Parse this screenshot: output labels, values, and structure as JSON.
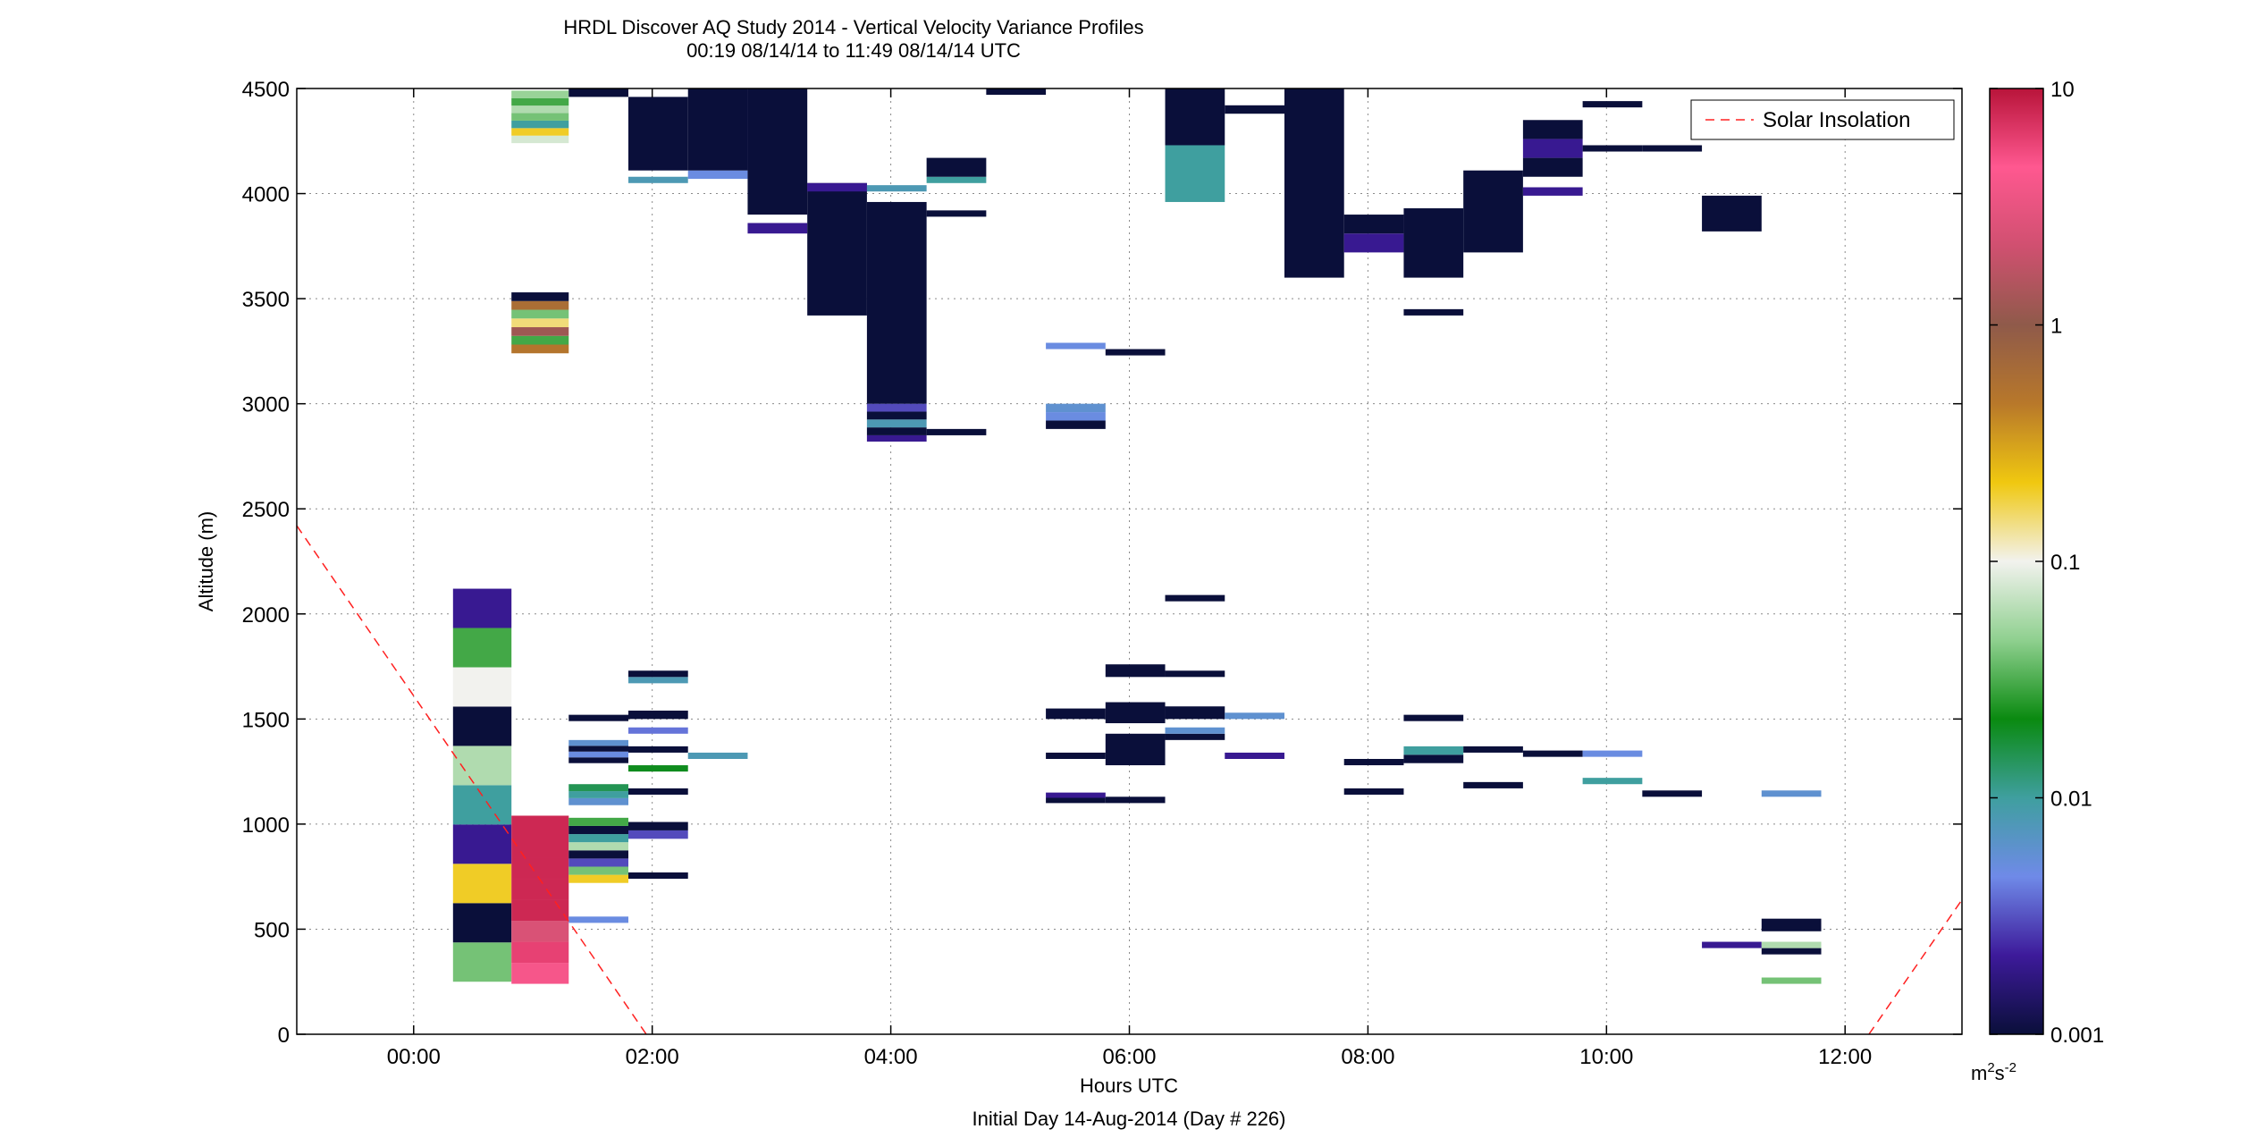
{
  "chart_data": {
    "type": "heatmap",
    "title": "HRDL Discover AQ Study 2014 - Vertical Velocity Variance Profiles",
    "subtitle": "00:19 08/14/14 to 11:49 08/14/14  UTC",
    "xlabel": "Hours UTC",
    "xlabel2": "Initial Day 14-Aug-2014 (Day # 226)",
    "ylabel": "Altitude (m)",
    "xlim": [
      -0.98,
      12.98
    ],
    "ylim": [
      0,
      4500
    ],
    "x_ticks": [
      0,
      2,
      4,
      6,
      8,
      10,
      12
    ],
    "x_tick_labels": [
      "00:00",
      "02:00",
      "04:00",
      "06:00",
      "08:00",
      "10:00",
      "12:00"
    ],
    "y_ticks": [
      0,
      500,
      1000,
      1500,
      2000,
      2500,
      3000,
      3500,
      4000,
      4500
    ],
    "y_tick_labels": [
      "0",
      "500",
      "1000",
      "1500",
      "2000",
      "2500",
      "3000",
      "3500",
      "4000",
      "4500"
    ],
    "grid": true,
    "legend": {
      "position": "top-right",
      "entries": [
        "Solar Insolation"
      ]
    },
    "colorbar": {
      "scale": "log",
      "range": [
        0.001,
        10
      ],
      "ticks": [
        0.001,
        0.01,
        0.1,
        1,
        10
      ],
      "tick_labels": [
        "0.001",
        "0.01",
        "0.1",
        "1",
        "10"
      ],
      "unit_base": "m",
      "unit_sup1": "2",
      "unit_mid": "s",
      "unit_sup2": "-2",
      "stops": [
        "#0a0f3a",
        "#3d1a9a",
        "#6f8ae8",
        "#3f9f9f",
        "#0a8a10",
        "#8fd08f",
        "#f2f2ee",
        "#f0c810",
        "#b8782a",
        "#8f5a4a",
        "#d05070",
        "#ff5890",
        "#b8143a"
      ]
    },
    "solar_insolation": [
      {
        "x": -0.98,
        "y": 2420
      },
      {
        "x": 1.95,
        "y": 0
      },
      {
        "x": 12.2,
        "y": 0
      },
      {
        "x": 12.98,
        "y": 640
      }
    ],
    "cells": [
      {
        "x0": 0.33,
        "x1": 0.82,
        "y0": 250,
        "y1": 2120,
        "v": [
          0.04,
          0.001,
          0.2,
          0.002,
          0.01,
          0.06,
          0.001,
          0.1,
          0.03,
          0.002
        ]
      },
      {
        "x0": 0.82,
        "x1": 1.3,
        "y0": 240,
        "y1": 1040,
        "v": [
          4,
          6,
          2.5,
          8,
          8,
          8,
          8,
          8
        ]
      },
      {
        "x0": 0.82,
        "x1": 1.3,
        "y0": 3240,
        "y1": 3530,
        "v": [
          0.5,
          0.03,
          1.2,
          0.15,
          0.04,
          0.6,
          0.001
        ]
      },
      {
        "x0": 0.82,
        "x1": 1.3,
        "y0": 4240,
        "y1": 4490,
        "v": [
          0.08,
          0.2,
          0.01,
          0.04,
          0.06,
          0.03,
          0.05
        ]
      },
      {
        "x0": 1.3,
        "x1": 1.8,
        "y0": 530,
        "y1": 560,
        "v": [
          0.005
        ]
      },
      {
        "x0": 1.3,
        "x1": 1.8,
        "y0": 720,
        "y1": 1030,
        "v": [
          0.2,
          0.04,
          0.003,
          0.001,
          0.06,
          0.01,
          0.001,
          0.03
        ]
      },
      {
        "x0": 1.3,
        "x1": 1.8,
        "y0": 1090,
        "y1": 1190,
        "v": [
          0.006,
          0.01,
          0.015
        ]
      },
      {
        "x0": 1.3,
        "x1": 1.8,
        "y0": 1290,
        "y1": 1400,
        "v": [
          0.001,
          0.005,
          0.001,
          0.006
        ]
      },
      {
        "x0": 1.3,
        "x1": 1.8,
        "y0": 1490,
        "y1": 1520,
        "v": [
          0.001
        ]
      },
      {
        "x0": 1.3,
        "x1": 1.8,
        "y0": 4460,
        "y1": 4500,
        "v": [
          0.001
        ]
      },
      {
        "x0": 1.8,
        "x1": 2.3,
        "y0": 740,
        "y1": 770,
        "v": [
          0.001
        ]
      },
      {
        "x0": 1.8,
        "x1": 2.3,
        "y0": 930,
        "y1": 1010,
        "v": [
          0.003,
          0.001
        ]
      },
      {
        "x0": 1.8,
        "x1": 2.3,
        "y0": 1140,
        "y1": 1170,
        "v": [
          0.001
        ]
      },
      {
        "x0": 1.8,
        "x1": 2.3,
        "y0": 1250,
        "y1": 1280,
        "v": [
          0.02
        ]
      },
      {
        "x0": 1.8,
        "x1": 2.3,
        "y0": 1340,
        "y1": 1370,
        "v": [
          0.001
        ]
      },
      {
        "x0": 1.8,
        "x1": 2.3,
        "y0": 1430,
        "y1": 1460,
        "v": [
          0.004
        ]
      },
      {
        "x0": 1.8,
        "x1": 2.3,
        "y0": 1500,
        "y1": 1540,
        "v": [
          0.001
        ]
      },
      {
        "x0": 1.8,
        "x1": 2.3,
        "y0": 1670,
        "y1": 1730,
        "v": [
          0.008,
          0.001
        ]
      },
      {
        "x0": 1.8,
        "x1": 2.3,
        "y0": 4050,
        "y1": 4080,
        "v": [
          0.008
        ]
      },
      {
        "x0": 1.8,
        "x1": 2.3,
        "y0": 4110,
        "y1": 4460,
        "v": [
          0.001
        ]
      },
      {
        "x0": 2.3,
        "x1": 2.8,
        "y0": 1310,
        "y1": 1340,
        "v": [
          0.008
        ]
      },
      {
        "x0": 2.3,
        "x1": 2.8,
        "y0": 4070,
        "y1": 4110,
        "v": [
          0.005
        ]
      },
      {
        "x0": 2.3,
        "x1": 2.8,
        "y0": 4110,
        "y1": 4500,
        "v": [
          0.001
        ]
      },
      {
        "x0": 2.8,
        "x1": 3.3,
        "y0": 3810,
        "y1": 3860,
        "v": [
          0.002
        ]
      },
      {
        "x0": 2.8,
        "x1": 3.3,
        "y0": 3900,
        "y1": 4500,
        "v": [
          0.001
        ]
      },
      {
        "x0": 3.3,
        "x1": 3.8,
        "y0": 3420,
        "y1": 4050,
        "v": [
          0.001
        ]
      },
      {
        "x0": 3.3,
        "x1": 3.8,
        "y0": 4010,
        "y1": 4050,
        "v": [
          0.002
        ]
      },
      {
        "x0": 3.8,
        "x1": 4.3,
        "y0": 2820,
        "y1": 2850,
        "v": [
          0.002
        ]
      },
      {
        "x0": 3.8,
        "x1": 4.3,
        "y0": 2850,
        "y1": 3000,
        "v": [
          0.001,
          0.008,
          0.001,
          0.003
        ]
      },
      {
        "x0": 3.8,
        "x1": 4.3,
        "y0": 3000,
        "y1": 3960,
        "v": [
          0.001
        ]
      },
      {
        "x0": 3.8,
        "x1": 4.3,
        "y0": 4010,
        "y1": 4040,
        "v": [
          0.008
        ]
      },
      {
        "x0": 4.3,
        "x1": 4.8,
        "y0": 2850,
        "y1": 2880,
        "v": [
          0.001
        ]
      },
      {
        "x0": 4.3,
        "x1": 4.8,
        "y0": 3890,
        "y1": 3920,
        "v": [
          0.001
        ]
      },
      {
        "x0": 4.3,
        "x1": 4.8,
        "y0": 4050,
        "y1": 4080,
        "v": [
          0.01
        ]
      },
      {
        "x0": 4.3,
        "x1": 4.8,
        "y0": 4080,
        "y1": 4170,
        "v": [
          0.001
        ]
      },
      {
        "x0": 4.8,
        "x1": 5.3,
        "y0": 4470,
        "y1": 4500,
        "v": [
          0.001
        ]
      },
      {
        "x0": 5.3,
        "x1": 5.8,
        "y0": 1100,
        "y1": 1150,
        "v": [
          0.001,
          0.002
        ]
      },
      {
        "x0": 5.3,
        "x1": 5.8,
        "y0": 1310,
        "y1": 1340,
        "v": [
          0.001
        ]
      },
      {
        "x0": 5.3,
        "x1": 5.8,
        "y0": 1500,
        "y1": 1550,
        "v": [
          0.001
        ]
      },
      {
        "x0": 5.3,
        "x1": 5.8,
        "y0": 2880,
        "y1": 3000,
        "v": [
          0.001,
          0.005,
          0.006
        ]
      },
      {
        "x0": 5.3,
        "x1": 5.8,
        "y0": 3260,
        "y1": 3290,
        "v": [
          0.005
        ]
      },
      {
        "x0": 5.8,
        "x1": 6.3,
        "y0": 1100,
        "y1": 1130,
        "v": [
          0.001
        ]
      },
      {
        "x0": 5.8,
        "x1": 6.3,
        "y0": 1280,
        "y1": 1430,
        "v": [
          0.001
        ]
      },
      {
        "x0": 5.8,
        "x1": 6.3,
        "y0": 1480,
        "y1": 1580,
        "v": [
          0.001
        ]
      },
      {
        "x0": 5.8,
        "x1": 6.3,
        "y0": 1700,
        "y1": 1760,
        "v": [
          0.001
        ]
      },
      {
        "x0": 5.8,
        "x1": 6.3,
        "y0": 3230,
        "y1": 3260,
        "v": [
          0.001
        ]
      },
      {
        "x0": 6.3,
        "x1": 6.8,
        "y0": 1400,
        "y1": 1460,
        "v": [
          0.001,
          0.006
        ]
      },
      {
        "x0": 6.3,
        "x1": 6.8,
        "y0": 1500,
        "y1": 1560,
        "v": [
          0.001
        ]
      },
      {
        "x0": 6.3,
        "x1": 6.8,
        "y0": 1700,
        "y1": 1730,
        "v": [
          0.001
        ]
      },
      {
        "x0": 6.3,
        "x1": 6.8,
        "y0": 2060,
        "y1": 2090,
        "v": [
          0.001
        ]
      },
      {
        "x0": 6.3,
        "x1": 6.8,
        "y0": 3960,
        "y1": 4500,
        "v": [
          0.01,
          0.001
        ]
      },
      {
        "x0": 6.8,
        "x1": 7.3,
        "y0": 1310,
        "y1": 1340,
        "v": [
          0.002
        ]
      },
      {
        "x0": 6.8,
        "x1": 7.3,
        "y0": 1500,
        "y1": 1530,
        "v": [
          0.006
        ]
      },
      {
        "x0": 6.8,
        "x1": 7.3,
        "y0": 4380,
        "y1": 4420,
        "v": [
          0.001
        ]
      },
      {
        "x0": 7.3,
        "x1": 7.8,
        "y0": 3600,
        "y1": 4500,
        "v": [
          0.001
        ]
      },
      {
        "x0": 7.8,
        "x1": 8.3,
        "y0": 1140,
        "y1": 1170,
        "v": [
          0.001
        ]
      },
      {
        "x0": 7.8,
        "x1": 8.3,
        "y0": 1280,
        "y1": 1310,
        "v": [
          0.001
        ]
      },
      {
        "x0": 7.8,
        "x1": 8.3,
        "y0": 3720,
        "y1": 3900,
        "v": [
          0.002,
          0.001
        ]
      },
      {
        "x0": 8.3,
        "x1": 8.8,
        "y0": 1290,
        "y1": 1370,
        "v": [
          0.001,
          0.01
        ]
      },
      {
        "x0": 8.3,
        "x1": 8.8,
        "y0": 1490,
        "y1": 1520,
        "v": [
          0.001
        ]
      },
      {
        "x0": 8.3,
        "x1": 8.8,
        "y0": 3420,
        "y1": 3450,
        "v": [
          0.001
        ]
      },
      {
        "x0": 8.3,
        "x1": 8.8,
        "y0": 3600,
        "y1": 3930,
        "v": [
          0.001
        ]
      },
      {
        "x0": 8.8,
        "x1": 9.3,
        "y0": 1170,
        "y1": 1200,
        "v": [
          0.001
        ]
      },
      {
        "x0": 8.8,
        "x1": 9.3,
        "y0": 1340,
        "y1": 1370,
        "v": [
          0.001
        ]
      },
      {
        "x0": 8.8,
        "x1": 9.3,
        "y0": 3720,
        "y1": 4110,
        "v": [
          0.001
        ]
      },
      {
        "x0": 9.3,
        "x1": 9.8,
        "y0": 1320,
        "y1": 1350,
        "v": [
          0.001
        ]
      },
      {
        "x0": 9.3,
        "x1": 9.8,
        "y0": 3990,
        "y1": 4030,
        "v": [
          0.002
        ]
      },
      {
        "x0": 9.3,
        "x1": 9.8,
        "y0": 4080,
        "y1": 4350,
        "v": [
          0.001,
          0.002,
          0.001
        ]
      },
      {
        "x0": 9.8,
        "x1": 10.3,
        "y0": 1190,
        "y1": 1220,
        "v": [
          0.01
        ]
      },
      {
        "x0": 9.8,
        "x1": 10.3,
        "y0": 1320,
        "y1": 1350,
        "v": [
          0.005
        ]
      },
      {
        "x0": 9.8,
        "x1": 10.3,
        "y0": 4200,
        "y1": 4230,
        "v": [
          0.001
        ]
      },
      {
        "x0": 9.8,
        "x1": 10.3,
        "y0": 4410,
        "y1": 4440,
        "v": [
          0.001
        ]
      },
      {
        "x0": 10.3,
        "x1": 10.8,
        "y0": 1130,
        "y1": 1160,
        "v": [
          0.001
        ]
      },
      {
        "x0": 10.3,
        "x1": 10.8,
        "y0": 4200,
        "y1": 4230,
        "v": [
          0.001
        ]
      },
      {
        "x0": 10.8,
        "x1": 11.3,
        "y0": 410,
        "y1": 440,
        "v": [
          0.002
        ]
      },
      {
        "x0": 11.3,
        "x1": 11.8,
        "y0": 240,
        "y1": 270,
        "v": [
          0.04
        ]
      },
      {
        "x0": 11.3,
        "x1": 11.8,
        "y0": 380,
        "y1": 440,
        "v": [
          0.001,
          0.06
        ]
      },
      {
        "x0": 11.3,
        "x1": 11.8,
        "y0": 490,
        "y1": 550,
        "v": [
          0.001
        ]
      },
      {
        "x0": 11.3,
        "x1": 11.8,
        "y0": 1130,
        "y1": 1160,
        "v": [
          0.006
        ]
      },
      {
        "x0": 10.8,
        "x1": 11.3,
        "y0": 3820,
        "y1": 3990,
        "v": [
          0.001
        ]
      }
    ]
  }
}
